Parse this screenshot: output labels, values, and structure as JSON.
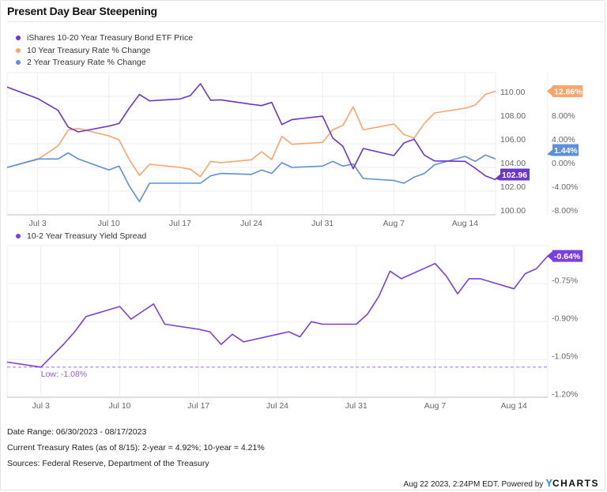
{
  "title": "Present Day Bear Steepening",
  "colors": {
    "etf": "#6a35d0",
    "ten": "#ffa36b",
    "two": "#5b90dc",
    "spread": "#7b3fe0",
    "grid": "#eeeeee",
    "axis_text": "#666666"
  },
  "chart_data": [
    {
      "type": "line",
      "dual_axis": true,
      "grid": true,
      "legend": "top-left",
      "dates": [
        "06/30",
        "07/03",
        "07/05",
        "07/06",
        "07/07",
        "07/10",
        "07/11",
        "07/12",
        "07/13",
        "07/14",
        "07/17",
        "07/18",
        "07/19",
        "07/20",
        "07/21",
        "07/24",
        "07/25",
        "07/26",
        "07/27",
        "07/28",
        "07/31",
        "08/01",
        "08/02",
        "08/03",
        "08/04",
        "08/07",
        "08/08",
        "08/09",
        "08/10",
        "08/11",
        "08/14",
        "08/15",
        "08/16",
        "08/17"
      ],
      "x_ticks": [
        "Jul 3",
        "Jul 10",
        "Jul 17",
        "Jul 24",
        "Jul 31",
        "Aug 7",
        "Aug 14"
      ],
      "left_axis": {
        "ylim": [
          100,
          110
        ],
        "ticks": [
          "110.00",
          "108.00",
          "106.00",
          "104.00",
          "102.00",
          "100.00"
        ]
      },
      "right_axis": {
        "ylim": [
          -8,
          12
        ],
        "ticks": [
          "8.00%",
          "4.00%",
          "0.00%",
          "-4.00%",
          "-8.00%"
        ]
      },
      "series": [
        {
          "name": "iShares 10-20 Year Treasury Bond ETF Price",
          "axis": "left",
          "color": "#6a35d0",
          "last_label": "102.96",
          "values": [
            110.78,
            109.82,
            108.82,
            107.4,
            107.0,
            107.49,
            107.71,
            109.0,
            110.15,
            109.62,
            109.78,
            110.07,
            111.07,
            109.67,
            109.71,
            109.33,
            109.22,
            109.49,
            107.62,
            108.04,
            108.33,
            106.49,
            105.78,
            103.89,
            105.6,
            105.0,
            106.07,
            106.38,
            105.04,
            104.55,
            104.51,
            103.93,
            103.29,
            102.96
          ]
        },
        {
          "name": "10 Year Treasury Rate % Change",
          "axis": "right",
          "color": "#ffa36b",
          "last_label": "12.86%",
          "values": [
            0,
            1.33,
            3.64,
            6.31,
            6.58,
            5.33,
            4.66,
            1.33,
            -1.34,
            0.53,
            0,
            -0.31,
            -1.56,
            1.02,
            0.8,
            1.29,
            2.66,
            1.33,
            5.24,
            3.91,
            4.22,
            6.35,
            7.11,
            10.22,
            6.35,
            7.33,
            5.55,
            4.98,
            7.42,
            9.2,
            10.0,
            10.53,
            12.35,
            12.86
          ]
        },
        {
          "name": "2 Year Treasury Rate % Change",
          "axis": "right",
          "color": "#5b90dc",
          "last_label": "1.44%",
          "values": [
            0,
            1.43,
            1.43,
            2.45,
            1.43,
            -0.44,
            0.23,
            -3.1,
            -5.77,
            -2.67,
            -2.67,
            -2.67,
            -2.67,
            -1.41,
            -1.01,
            -1.17,
            -0.44,
            -1.01,
            0.8,
            0,
            0.23,
            1.03,
            0.23,
            0.59,
            -1.87,
            -2.21,
            -2.67,
            -1.64,
            -1.01,
            0.45,
            1.87,
            1.03,
            2.09,
            1.44
          ]
        }
      ]
    },
    {
      "type": "line",
      "grid": true,
      "legend": "top-left",
      "dates": [
        "06/30",
        "07/03",
        "07/05",
        "07/06",
        "07/07",
        "07/10",
        "07/11",
        "07/12",
        "07/13",
        "07/14",
        "07/17",
        "07/18",
        "07/19",
        "07/20",
        "07/21",
        "07/24",
        "07/25",
        "07/26",
        "07/27",
        "07/28",
        "07/31",
        "08/01",
        "08/02",
        "08/03",
        "08/04",
        "08/07",
        "08/08",
        "08/09",
        "08/10",
        "08/11",
        "08/14",
        "08/15",
        "08/16",
        "08/17"
      ],
      "x_ticks": [
        "Jul 3",
        "Jul 10",
        "Jul 17",
        "Jul 24",
        "Jul 31",
        "Aug 7",
        "Aug 14"
      ],
      "right_axis": {
        "ylim": [
          -1.2,
          -0.6
        ],
        "ticks": [
          "-0.75%",
          "-0.90%",
          "-1.05%",
          "-1.20%"
        ]
      },
      "annotation": {
        "value": -1.08,
        "label": "Low: -1.08%"
      },
      "series": [
        {
          "name": "10-2 Year Treasury Yield Spread",
          "axis": "right",
          "color": "#7b3fe0",
          "last_label": "-0.64%",
          "values": [
            -1.06,
            -1.08,
            -0.99,
            -0.94,
            -0.88,
            -0.84,
            -0.89,
            -0.86,
            -0.83,
            -0.91,
            -0.93,
            -0.94,
            -0.99,
            -0.95,
            -0.98,
            -0.95,
            -0.94,
            -0.96,
            -0.9,
            -0.91,
            -0.91,
            -0.87,
            -0.8,
            -0.7,
            -0.73,
            -0.67,
            -0.72,
            -0.79,
            -0.73,
            -0.73,
            -0.77,
            -0.71,
            -0.69,
            -0.64
          ]
        }
      ]
    }
  ],
  "footer": {
    "date_range": "Date Range: 06/30/2023 - 08/17/2023",
    "current_rates": "Current Treasury Rates (as of 8/15): 2-year =  4.92%;  10-year =  4.21%",
    "sources": "Sources: Federal Reserve, Department of the Treasury",
    "timestamp": "Aug 22 2023, 2:24PM EDT. Powered by",
    "logo_y": "Y",
    "logo_rest": "CHARTS"
  }
}
